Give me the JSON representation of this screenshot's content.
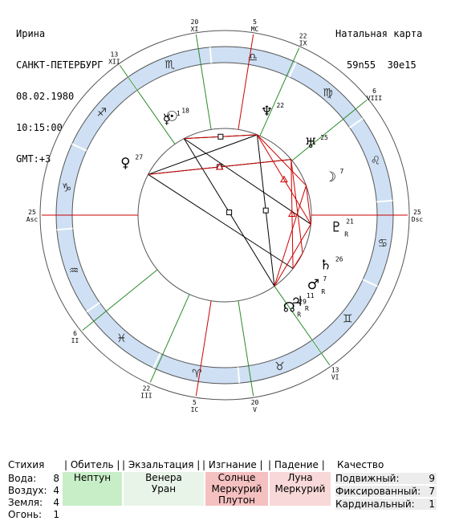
{
  "header": {
    "name": "Ирина",
    "city": "САНКТ-ПЕТЕРБУРГ",
    "date": "08.02.1980",
    "time": "10:15:00",
    "gmt": "GMT:+3",
    "chart_title": "Натальная карта",
    "coords": "59n55  30e15"
  },
  "houses": [
    {
      "name": "Asc",
      "deg": "25"
    },
    {
      "name": "II",
      "deg": "6"
    },
    {
      "name": "III",
      "deg": "22"
    },
    {
      "name": "IC",
      "deg": "5"
    },
    {
      "name": "V",
      "deg": "20"
    },
    {
      "name": "VI",
      "deg": "13"
    },
    {
      "name": "Dsc",
      "deg": "25"
    },
    {
      "name": "VIII",
      "deg": "6"
    },
    {
      "name": "IX",
      "deg": "22"
    },
    {
      "name": "MC",
      "deg": "5"
    },
    {
      "name": "XI",
      "deg": "20"
    },
    {
      "name": "XII",
      "deg": "13"
    }
  ],
  "zodiac": [
    {
      "sign": "aries",
      "glyph": "♈"
    },
    {
      "sign": "taurus",
      "glyph": "♉"
    },
    {
      "sign": "gemini",
      "glyph": "♊"
    },
    {
      "sign": "cancer",
      "glyph": "♋"
    },
    {
      "sign": "leo",
      "glyph": "♌"
    },
    {
      "sign": "virgo",
      "glyph": "♍"
    },
    {
      "sign": "libra",
      "glyph": "♎"
    },
    {
      "sign": "scorpio",
      "glyph": "♏"
    },
    {
      "sign": "sagittarius",
      "glyph": "♐"
    },
    {
      "sign": "capricorn",
      "glyph": "♑"
    },
    {
      "sign": "aquarius",
      "glyph": "♒"
    },
    {
      "sign": "pisces",
      "glyph": "♓"
    }
  ],
  "planets": [
    {
      "name": "sun",
      "glyph": "☉",
      "deg": "18"
    },
    {
      "name": "mercury",
      "glyph": "☿",
      "deg": "1"
    },
    {
      "name": "venus",
      "glyph": "♀",
      "deg": "27"
    },
    {
      "name": "neptune",
      "glyph": "♆",
      "deg": "22"
    },
    {
      "name": "uranus",
      "glyph": "♅",
      "deg": "25"
    },
    {
      "name": "moon",
      "glyph": "☽",
      "deg": "7"
    },
    {
      "name": "pluto",
      "glyph": "♇",
      "deg": "21",
      "retro": "R"
    },
    {
      "name": "saturn",
      "glyph": "♄",
      "deg": "26"
    },
    {
      "name": "mars",
      "glyph": "♂",
      "deg": "7",
      "retro": "R"
    },
    {
      "name": "jupiter",
      "glyph": "♃",
      "deg": "11",
      "retro": "R"
    },
    {
      "name": "node",
      "glyph": "☊",
      "deg": "29",
      "retro": "R"
    }
  ],
  "table": {
    "headers": {
      "element": "Стихия",
      "domicile": "| Обитель |",
      "exaltation": "| Экзальтация |",
      "detriment": "| Изгнание |",
      "fall": "| Падение |",
      "quality": "Качество"
    },
    "elements": [
      {
        "name": "Вода:",
        "count": "8"
      },
      {
        "name": "Воздух:",
        "count": "4"
      },
      {
        "name": "Земля:",
        "count": "4"
      },
      {
        "name": "Огонь:",
        "count": "1"
      }
    ],
    "domicile": [
      "Нептун"
    ],
    "exaltation": [
      "Венера",
      "Уран"
    ],
    "detriment": [
      "Солнце",
      "Меркурий",
      "Плутон"
    ],
    "fall": [
      "Луна",
      "Меркурий"
    ],
    "qualities": [
      {
        "name": "Подвижный:",
        "count": "9"
      },
      {
        "name": "Фиксированный:",
        "count": "7"
      },
      {
        "name": "Кардинальный:",
        "count": "1"
      }
    ],
    "colors": {
      "domicile": "#c8eec8",
      "exaltation": "#e8f4e8",
      "detriment": "#f4c0c0",
      "fall": "#f8d8d8",
      "quality": "#ececec"
    }
  },
  "colors": {
    "zodiac_ring": "#cfe0f4",
    "aspect_red": "#cc0000",
    "aspect_black": "#000000",
    "house_green": "#2a8a2a",
    "house_red": "#cc0000"
  }
}
